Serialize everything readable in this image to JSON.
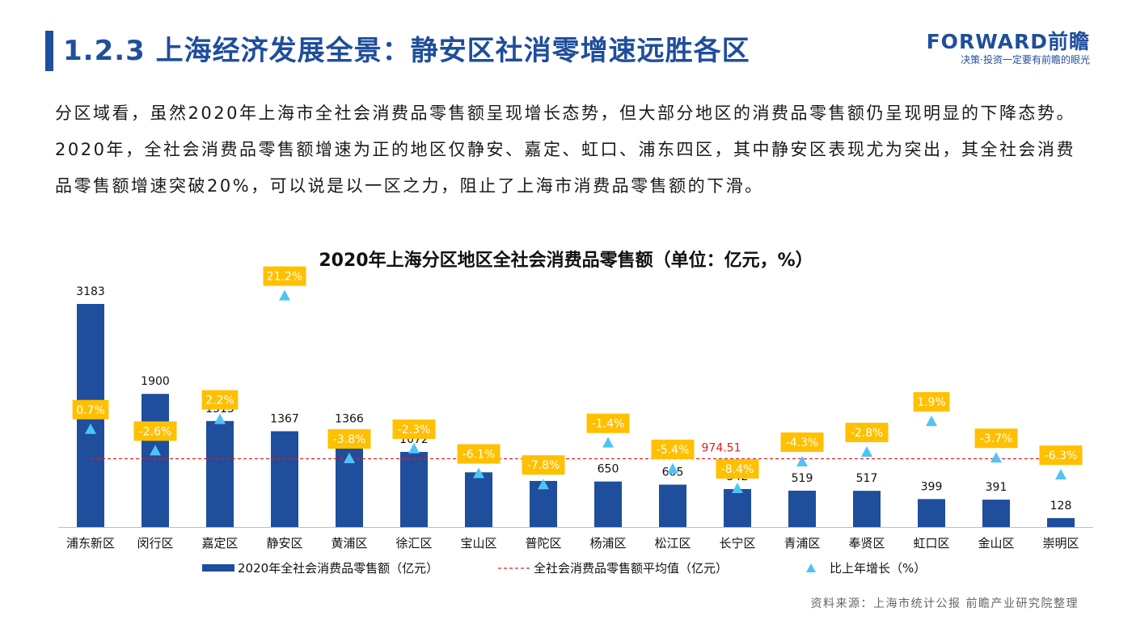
{
  "header": {
    "title": "1.2.3 上海经济发展全景：静安区社消零增速远胜各区",
    "logo_text": "FORWARD前瞻",
    "logo_tagline": "决策·投资一定要有前瞻的眼光"
  },
  "intro_text": "分区域看，虽然2020年上海市全社会消费品零售额呈现增长态势，但大部分地区的消费品零售额仍呈现明显的下降态势。2020年，全社会消费品零售额增速为正的地区仅静安、嘉定、虹口、浦东四区，其中静安区表现尤为突出，其全社会消费品零售额增速突破20%，可以说是以一区之力，阻止了上海市消费品零售额的下滑。",
  "source": "资料来源：上海市统计公报 前瞻产业研究院整理",
  "colors": {
    "bar": "#1f4e9c",
    "average_line": "#e02020",
    "growth_marker": "#4fc3f7",
    "growth_label_bg": "#ffc000"
  },
  "chart_data": {
    "type": "bar",
    "title": "2020年上海分区地区全社会消费品零售额（单位：亿元，%）",
    "categories": [
      "浦东新区",
      "闵行区",
      "嘉定区",
      "静安区",
      "黄浦区",
      "徐汇区",
      "宝山区",
      "普陀区",
      "杨浦区",
      "松江区",
      "长宁区",
      "青浦区",
      "奉贤区",
      "虹口区",
      "金山区",
      "崇明区"
    ],
    "series": [
      {
        "name": "2020年全社会消费品零售额（亿元）",
        "type": "bar",
        "values": [
          3183,
          1900,
          1513,
          1367,
          1366,
          1072,
          781,
          658,
          650,
          605,
          542,
          519,
          517,
          399,
          391,
          128
        ]
      },
      {
        "name": "比上年增长（%）",
        "type": "scatter",
        "values": [
          0.7,
          -2.6,
          2.2,
          21.2,
          -3.8,
          -2.3,
          -6.1,
          -7.8,
          -1.4,
          -5.4,
          -8.4,
          -4.3,
          -2.8,
          1.9,
          -3.7,
          -6.3
        ],
        "labels": [
          "0.7%",
          "-2.6%",
          "2.2%",
          "21.2%",
          "-3.8%",
          "-2.3%",
          "-6.1%",
          "-7.8%",
          "-1.4%",
          "-5.4%",
          "-8.4%",
          "-4.3%",
          "-2.8%",
          "1.9%",
          "-3.7%",
          "-6.3%"
        ]
      }
    ],
    "average": {
      "name": "全社会消费品零售额平均值（亿元）",
      "value": 974.51,
      "label": "974.51"
    },
    "ylim": [
      0,
      3300
    ],
    "y2lim": [
      -11,
      25
    ],
    "grid": false,
    "legend": "bottom"
  }
}
